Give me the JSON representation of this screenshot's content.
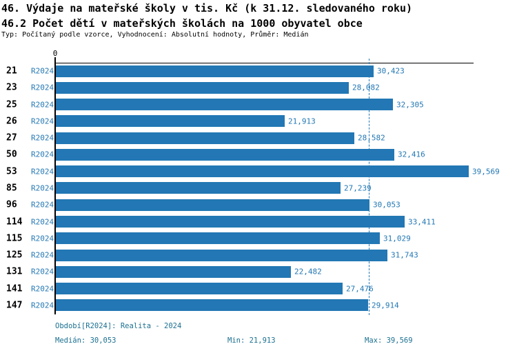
{
  "header": {
    "title_line1": "46. Výdaje na mateřské školy v tis. Kč (k 31.12. sledovaného roku)",
    "title_line2": "46.2 Počet dětí v mateřských školách na 1000 obyvatel obce",
    "meta_line": "Typ: Počítaný podle vzorce, Vyhodnocení: Absolutní hodnoty, Průměr: Medián"
  },
  "chart_data": {
    "type": "bar",
    "orientation": "horizontal",
    "categories": [
      "21",
      "23",
      "25",
      "26",
      "27",
      "50",
      "53",
      "85",
      "96",
      "114",
      "115",
      "125",
      "131",
      "141",
      "147"
    ],
    "series": [
      {
        "name": "R2024",
        "values": [
          30423,
          28082,
          32305,
          21913,
          28582,
          32416,
          39569,
          27239,
          30053,
          33411,
          31029,
          31743,
          22482,
          27476,
          29914
        ],
        "labels": [
          "30,423",
          "28,082",
          "32,305",
          "21,913",
          "28,582",
          "32,416",
          "39,569",
          "27,239",
          "30,053",
          "33,411",
          "31,029",
          "31,743",
          "22,482",
          "27,476",
          "29,914"
        ]
      }
    ],
    "axis": {
      "min": 0,
      "max": 40000,
      "origin_tick_label": "0"
    },
    "median_line": {
      "value": 30053
    },
    "legend_position": "none",
    "grid": "off"
  },
  "footer": {
    "period": "Období[R2024]: Realita - 2024",
    "median": "Medián: 30,053",
    "min": "Min: 21,913",
    "max": "Max: 39,569"
  },
  "colors": {
    "bar": "#2277b4",
    "accent_text": "#2277b4",
    "footer_text": "#1b7091",
    "axis": "#000000"
  }
}
